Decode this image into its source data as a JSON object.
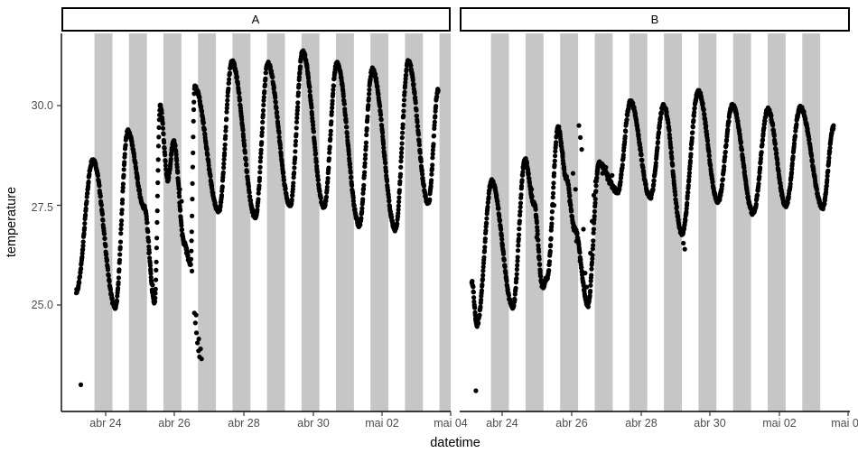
{
  "figure": {
    "kind": "faceted scatter plot (ggplot style)",
    "background": "#ffffff"
  },
  "chart_data": {
    "type": "scatter",
    "title": "",
    "xlabel": "datetime",
    "ylabel": "temperature",
    "time_origin": "abr 22 00:00 (t measured in days)",
    "x_ticks": [
      {
        "day": 2,
        "label": "abr 24"
      },
      {
        "day": 4,
        "label": "abr 26"
      },
      {
        "day": 6,
        "label": "abr 28"
      },
      {
        "day": 8,
        "label": "abr 30"
      },
      {
        "day": 10,
        "label": "mai 02"
      },
      {
        "day": 12,
        "label": "mai 04"
      }
    ],
    "y_ticks": [
      {
        "value": 30.0,
        "label": "30.0"
      },
      {
        "value": 27.5,
        "label": "27.5"
      },
      {
        "value": 25.0,
        "label": "25.0"
      }
    ],
    "y_range_panel": [
      22.33,
      31.81
    ],
    "x_range_days": [
      0.72,
      12.05
    ],
    "grid": "off",
    "legend": "none",
    "point_color": "#000000",
    "point_radius_px": 2.6,
    "night_bands": {
      "color": "#c6c6c6",
      "half_width_days": 0.26,
      "center_offset_days": -0.065,
      "panel_A_midnight_days": [
        2,
        3,
        4,
        5,
        6,
        7,
        8,
        9,
        10,
        11,
        12
      ],
      "panel_B_midnight_days": [
        2,
        3,
        4,
        5,
        6,
        7,
        8,
        9,
        10,
        11
      ]
    },
    "sampling_minutes": 10,
    "jitter_degC": 0.1,
    "panels": [
      {
        "label": "A",
        "knots_day_degC": [
          [
            1.15,
            25.35
          ],
          [
            1.63,
            28.65
          ],
          [
            2.28,
            24.95
          ],
          [
            2.64,
            29.35
          ],
          [
            3.12,
            27.45
          ],
          [
            3.42,
            25.05
          ],
          [
            3.58,
            30.0
          ],
          [
            3.8,
            28.15
          ],
          [
            3.97,
            29.1
          ],
          [
            4.28,
            26.55
          ],
          [
            4.46,
            26.0
          ],
          [
            4.58,
            30.45
          ],
          [
            5.28,
            27.35
          ],
          [
            5.66,
            31.1
          ],
          [
            6.34,
            27.2
          ],
          [
            6.7,
            31.05
          ],
          [
            7.35,
            27.5
          ],
          [
            7.71,
            31.35
          ],
          [
            8.33,
            27.45
          ],
          [
            8.7,
            31.05
          ],
          [
            9.35,
            27.0
          ],
          [
            9.73,
            30.9
          ],
          [
            10.4,
            26.9
          ],
          [
            10.77,
            31.1
          ],
          [
            11.35,
            27.55
          ],
          [
            11.64,
            30.4
          ]
        ],
        "extra_points_day_degC": [
          [
            1.28,
            23.0
          ],
          [
            4.57,
            24.8
          ],
          [
            4.6,
            24.55
          ],
          [
            4.63,
            24.3
          ],
          [
            4.66,
            24.05
          ],
          [
            4.69,
            23.85
          ],
          [
            4.72,
            23.7
          ],
          [
            4.75,
            23.9
          ],
          [
            4.78,
            23.65
          ],
          [
            4.62,
            24.75
          ],
          [
            4.7,
            24.15
          ],
          [
            4.34,
            26.3
          ],
          [
            4.4,
            26.15
          ],
          [
            4.5,
            25.85
          ],
          [
            4.2,
            27.6
          ],
          [
            4.15,
            27.9
          ],
          [
            3.25,
            26.3
          ],
          [
            3.3,
            25.9
          ],
          [
            3.36,
            25.5
          ]
        ]
      },
      {
        "label": "B",
        "knots_day_degC": [
          [
            1.12,
            25.6
          ],
          [
            1.27,
            24.5
          ],
          [
            1.7,
            28.1
          ],
          [
            2.31,
            24.95
          ],
          [
            2.66,
            28.65
          ],
          [
            2.92,
            27.55
          ],
          [
            3.17,
            25.45
          ],
          [
            3.3,
            25.7
          ],
          [
            3.62,
            29.45
          ],
          [
            3.85,
            28.2
          ],
          [
            4.1,
            26.9
          ],
          [
            4.48,
            25.0
          ],
          [
            4.8,
            28.55
          ],
          [
            5.34,
            27.85
          ],
          [
            5.71,
            30.1
          ],
          [
            6.28,
            27.7
          ],
          [
            6.67,
            30.0
          ],
          [
            7.2,
            26.8
          ],
          [
            7.67,
            30.35
          ],
          [
            8.24,
            27.6
          ],
          [
            8.66,
            30.0
          ],
          [
            9.26,
            27.3
          ],
          [
            9.68,
            29.9
          ],
          [
            10.2,
            27.5
          ],
          [
            10.62,
            29.95
          ],
          [
            11.27,
            27.45
          ],
          [
            11.58,
            29.45
          ]
        ],
        "extra_points_day_degC": [
          [
            1.24,
            22.85
          ],
          [
            2.75,
            28.3
          ],
          [
            2.85,
            27.9
          ],
          [
            3.0,
            26.7
          ],
          [
            3.06,
            26.2
          ],
          [
            3.1,
            25.8
          ],
          [
            3.4,
            26.5
          ],
          [
            3.5,
            27.5
          ],
          [
            3.7,
            29.0
          ],
          [
            3.75,
            28.8
          ],
          [
            3.95,
            27.6
          ],
          [
            4.05,
            28.3
          ],
          [
            4.12,
            27.9
          ],
          [
            4.22,
            29.5
          ],
          [
            4.26,
            29.2
          ],
          [
            4.3,
            28.9
          ],
          [
            4.15,
            26.6
          ],
          [
            4.25,
            26.1
          ],
          [
            4.35,
            26.9
          ],
          [
            4.4,
            25.8
          ],
          [
            4.44,
            25.45
          ],
          [
            4.5,
            25.15
          ],
          [
            4.55,
            26.3
          ],
          [
            4.6,
            27.1
          ],
          [
            4.65,
            27.75
          ],
          [
            4.7,
            28.1
          ],
          [
            4.75,
            28.35
          ],
          [
            4.9,
            28.3
          ],
          [
            5.0,
            28.45
          ],
          [
            5.05,
            28.15
          ],
          [
            5.1,
            28.05
          ],
          [
            5.18,
            28.25
          ],
          [
            5.25,
            27.95
          ],
          [
            7.24,
            26.55
          ],
          [
            7.28,
            26.4
          ]
        ]
      }
    ]
  }
}
